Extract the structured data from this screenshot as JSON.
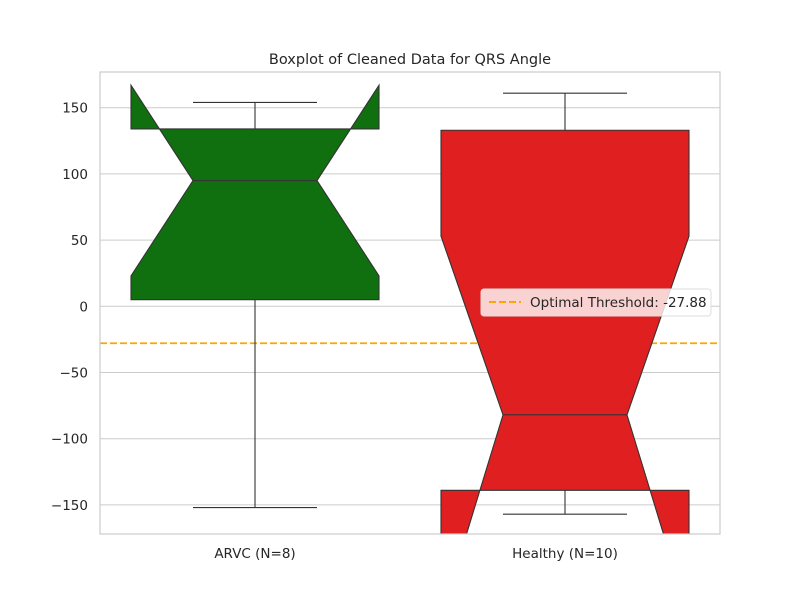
{
  "chart_data": {
    "type": "boxplot",
    "title": "Boxplot of Cleaned Data for QRS Angle",
    "xlabel": "",
    "ylabel": "",
    "ylim": [
      -172,
      177
    ],
    "yticks": [
      -150,
      -100,
      -50,
      0,
      50,
      100,
      150
    ],
    "ytick_labels": [
      "−150",
      "−100",
      "−50",
      "0",
      "50",
      "100",
      "150"
    ],
    "grid": true,
    "notched": true,
    "categories": [
      "ARVC (N=8)",
      "Healthy (N=10)"
    ],
    "boxes": [
      {
        "label": "ARVC (N=8)",
        "color": "#107010",
        "whisker_low": -152,
        "q1": 5,
        "notch_low": 23,
        "median": 95,
        "notch_high": 167,
        "q3": 134,
        "whisker_high": 154
      },
      {
        "label": "Healthy (N=10)",
        "color": "#e02020",
        "whisker_low": -157,
        "q1": -139,
        "notch_low": -235,
        "median": -82,
        "notch_high": 53,
        "q3": 133,
        "whisker_high": 161
      }
    ],
    "threshold": {
      "value": -27.88,
      "label": "Optimal Threshold: -27.88",
      "color": "#ffa500",
      "style": "dashed"
    },
    "legend_position": "center-right"
  }
}
